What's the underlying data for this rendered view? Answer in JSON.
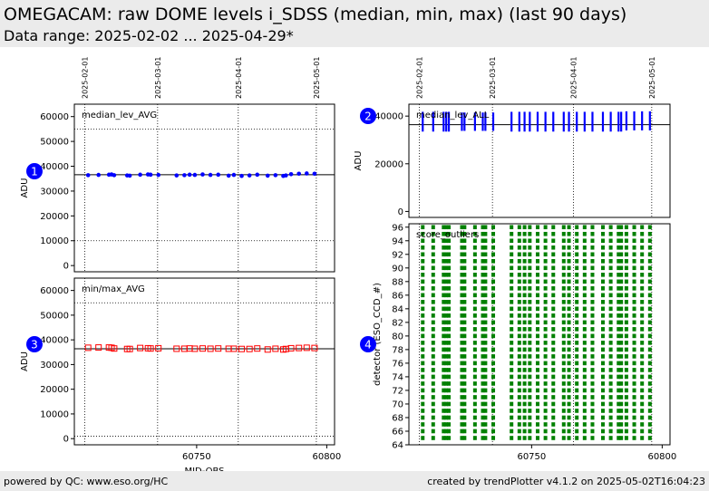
{
  "header": {
    "title": "OMEGACAM: raw DOME levels i_SDSS (median, min, max) (last 90 days)",
    "subtitle": "Data range: 2025-02-02 ... 2025-04-29*"
  },
  "footer": {
    "left": "powered by QC: www.eso.org/HC",
    "right": "created by trendPlotter v4.1.2 on 2025-05-02T16:04:23"
  },
  "colors": {
    "median": "#0000ff",
    "minmax": "#ff0000",
    "scores": "#008000",
    "badge": "#0000ff"
  },
  "chart_data": [
    {
      "id": "median_lev_AVG",
      "badge": "1",
      "type": "scatter",
      "label": "median_lev_AVG",
      "ylabel": "ADU",
      "ylim": [
        -2500,
        65000
      ],
      "yticks": [
        0,
        10000,
        20000,
        30000,
        40000,
        50000,
        60000
      ],
      "ref_lines": {
        "reference": 36600,
        "limits_dotted": [
          10000,
          55000
        ]
      },
      "x": [
        60708.3,
        60712.3,
        60716.3,
        60717.3,
        60718.3,
        60723.3,
        60724.3,
        60728.3,
        60731.3,
        60732.3,
        60735.3,
        60742.3,
        60745.3,
        60747.3,
        60749.3,
        60752.3,
        60755.3,
        60758.3,
        60762.3,
        60764.3,
        60767.3,
        60770.3,
        60773.3,
        60777.3,
        60780.3,
        60783.3,
        60784.3,
        60786.3,
        60789.3,
        60792.3,
        60795.3
      ],
      "y": [
        36400,
        36500,
        36600,
        36700,
        36400,
        36300,
        36200,
        36600,
        36700,
        36600,
        36500,
        36300,
        36400,
        36600,
        36500,
        36700,
        36500,
        36600,
        36200,
        36500,
        36100,
        36300,
        36600,
        36200,
        36400,
        36100,
        36300,
        36800,
        37000,
        37100,
        37000
      ]
    },
    {
      "id": "minmax_AVG",
      "badge": "3",
      "type": "scatter",
      "label": "min/max_AVG",
      "ylabel": "ADU",
      "xlabel": "MJD-OBS",
      "ylim": [
        -2500,
        65000
      ],
      "yticks": [
        0,
        10000,
        20000,
        30000,
        40000,
        50000,
        60000
      ],
      "xticks": [
        60750,
        60800
      ],
      "ref_lines": {
        "reference": 36400,
        "limits_dotted": [
          1000,
          55000
        ]
      },
      "x": [
        60708.3,
        60712.3,
        60716.3,
        60717.3,
        60718.3,
        60723.3,
        60724.3,
        60728.3,
        60731.3,
        60732.3,
        60735.3,
        60742.3,
        60745.3,
        60747.3,
        60749.3,
        60752.3,
        60755.3,
        60758.3,
        60762.3,
        60764.3,
        60767.3,
        60770.3,
        60773.3,
        60777.3,
        60780.3,
        60783.3,
        60784.3,
        60786.3,
        60789.3,
        60792.3,
        60795.3
      ],
      "y": [
        36800,
        36900,
        36900,
        36800,
        36500,
        36300,
        36300,
        36700,
        36600,
        36500,
        36600,
        36400,
        36400,
        36500,
        36400,
        36500,
        36400,
        36500,
        36400,
        36400,
        36300,
        36300,
        36500,
        36100,
        36400,
        36100,
        36300,
        36600,
        36700,
        36800,
        36700
      ]
    },
    {
      "id": "median_lev_ALL",
      "badge": "2",
      "type": "range",
      "label": "median_lev_ALL",
      "ylabel": "ADU",
      "ylim": [
        -2500,
        45000
      ],
      "yticks": [
        0,
        20000,
        40000
      ],
      "ref_lines": {
        "reference": 36400
      },
      "x": [
        60708.3,
        60712.3,
        60716.3,
        60717.3,
        60718.3,
        60723.3,
        60724.3,
        60728.3,
        60731.3,
        60732.3,
        60735.3,
        60742.3,
        60745.3,
        60747.3,
        60749.3,
        60752.3,
        60755.3,
        60758.3,
        60762.3,
        60764.3,
        60767.3,
        60770.3,
        60773.3,
        60777.3,
        60780.3,
        60783.3,
        60784.3,
        60786.3,
        60789.3,
        60792.3,
        60795.3
      ],
      "ymin": [
        33500,
        33500,
        33500,
        33500,
        33500,
        33800,
        33800,
        33800,
        33800,
        33800,
        33800,
        33500,
        33500,
        33500,
        33500,
        33500,
        33500,
        33500,
        33500,
        33500,
        33500,
        33500,
        33500,
        33500,
        33500,
        33500,
        33500,
        34000,
        34000,
        34000,
        34000
      ],
      "ymax": [
        41800,
        41800,
        41800,
        41800,
        41800,
        41500,
        41500,
        41500,
        41500,
        41500,
        41500,
        41800,
        41800,
        41800,
        41800,
        41800,
        41800,
        41800,
        41800,
        41800,
        41800,
        41800,
        41800,
        41800,
        41800,
        41800,
        41800,
        42000,
        42000,
        42000,
        42000
      ]
    },
    {
      "id": "score_outliers",
      "badge": "4",
      "type": "scatter",
      "label": "score_outliers",
      "ylabel": "detector (ESO_CCD_#)",
      "xlabel": "",
      "ylim": [
        64,
        96.5
      ],
      "yticks": [
        64,
        66,
        68,
        70,
        72,
        74,
        76,
        78,
        80,
        82,
        84,
        86,
        88,
        90,
        92,
        94,
        96
      ],
      "xticks": [
        60750,
        60800
      ],
      "detectors": [
        65,
        66,
        67,
        68,
        69,
        70,
        71,
        72,
        73,
        74,
        75,
        76,
        77,
        78,
        79,
        80,
        81,
        82,
        83,
        84,
        85,
        86,
        87,
        88,
        89,
        90,
        91,
        92,
        93,
        94,
        95,
        96
      ],
      "x": [
        60708.3,
        60712.3,
        60716.3,
        60717.3,
        60718.3,
        60723.3,
        60724.3,
        60728.3,
        60731.3,
        60732.3,
        60735.3,
        60742.3,
        60745.3,
        60747.3,
        60749.3,
        60752.3,
        60755.3,
        60758.3,
        60762.3,
        60764.3,
        60767.3,
        60770.3,
        60773.3,
        60777.3,
        60780.3,
        60783.3,
        60784.3,
        60786.3,
        60789.3,
        60792.3,
        60795.3
      ]
    }
  ],
  "date_markers": [
    {
      "label": "2025-02-01",
      "mjd": 60707
    },
    {
      "label": "2025-03-01",
      "mjd": 60735
    },
    {
      "label": "2025-04-01",
      "mjd": 60766
    },
    {
      "label": "2025-05-01",
      "mjd": 60796
    }
  ],
  "x_range": [
    60703,
    60803
  ]
}
